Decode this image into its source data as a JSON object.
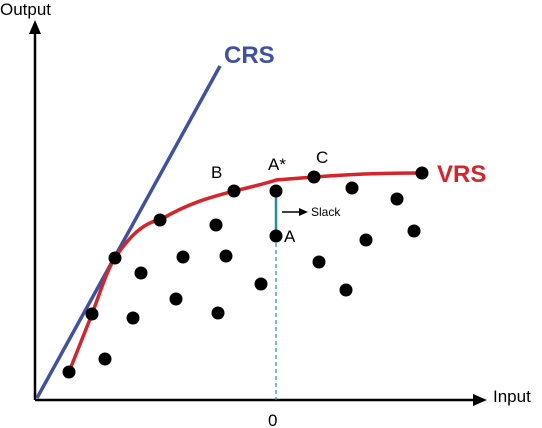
{
  "axes": {
    "y_label": "Output",
    "x_label": "Input",
    "x_tick_label": "0"
  },
  "frontiers": {
    "crs": {
      "label": "CRS",
      "color": "#3f51a3"
    },
    "vrs": {
      "label": "VRS",
      "color": "#d8232a"
    }
  },
  "points": {
    "a": "A",
    "a_star": "A*",
    "b": "B",
    "c": "C"
  },
  "slack": {
    "label": "Slack",
    "line_color": "#1f8fa3"
  },
  "colors": {
    "axis": "#000000",
    "dot": "#000000"
  }
}
